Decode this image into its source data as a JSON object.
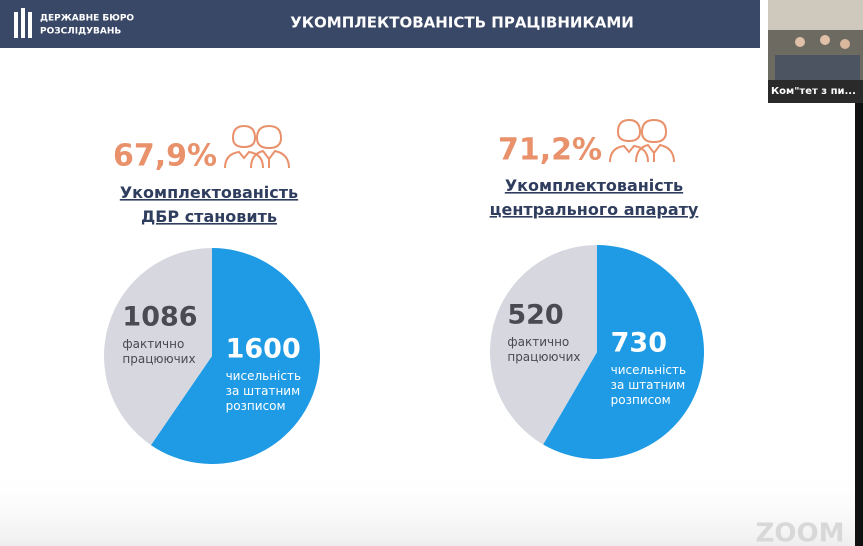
{
  "header": {
    "logo_line1": "ДЕРЖАВНЕ БЮРО",
    "logo_line2": "РОЗСЛІДУВАНЬ",
    "title": "УКОМПЛЕКТОВАНІСТЬ ПРАЦІВНИКАМИ"
  },
  "zoom": {
    "participant": "Ком\"тет з пи...",
    "watermark": "ZOOM"
  },
  "chart_data": [
    {
      "type": "pie",
      "title": "67,9%",
      "subtitle": "Укомплектованість\nДБР становить",
      "categories": [
        "чисельність\nза штатним\nрозписом",
        "фактично\nпрацюючих"
      ],
      "values": [
        1600,
        1086
      ],
      "colors": [
        "#1f9be6",
        "#d6d7df"
      ]
    },
    {
      "type": "pie",
      "title": "71,2%",
      "subtitle": "Укомплектованість\nцентрального апарату",
      "categories": [
        "чисельність\nза штатним\nрозписом",
        "фактично\nпрацюючих"
      ],
      "values": [
        730,
        520
      ],
      "colors": [
        "#1f9be6",
        "#d6d7df"
      ]
    }
  ]
}
